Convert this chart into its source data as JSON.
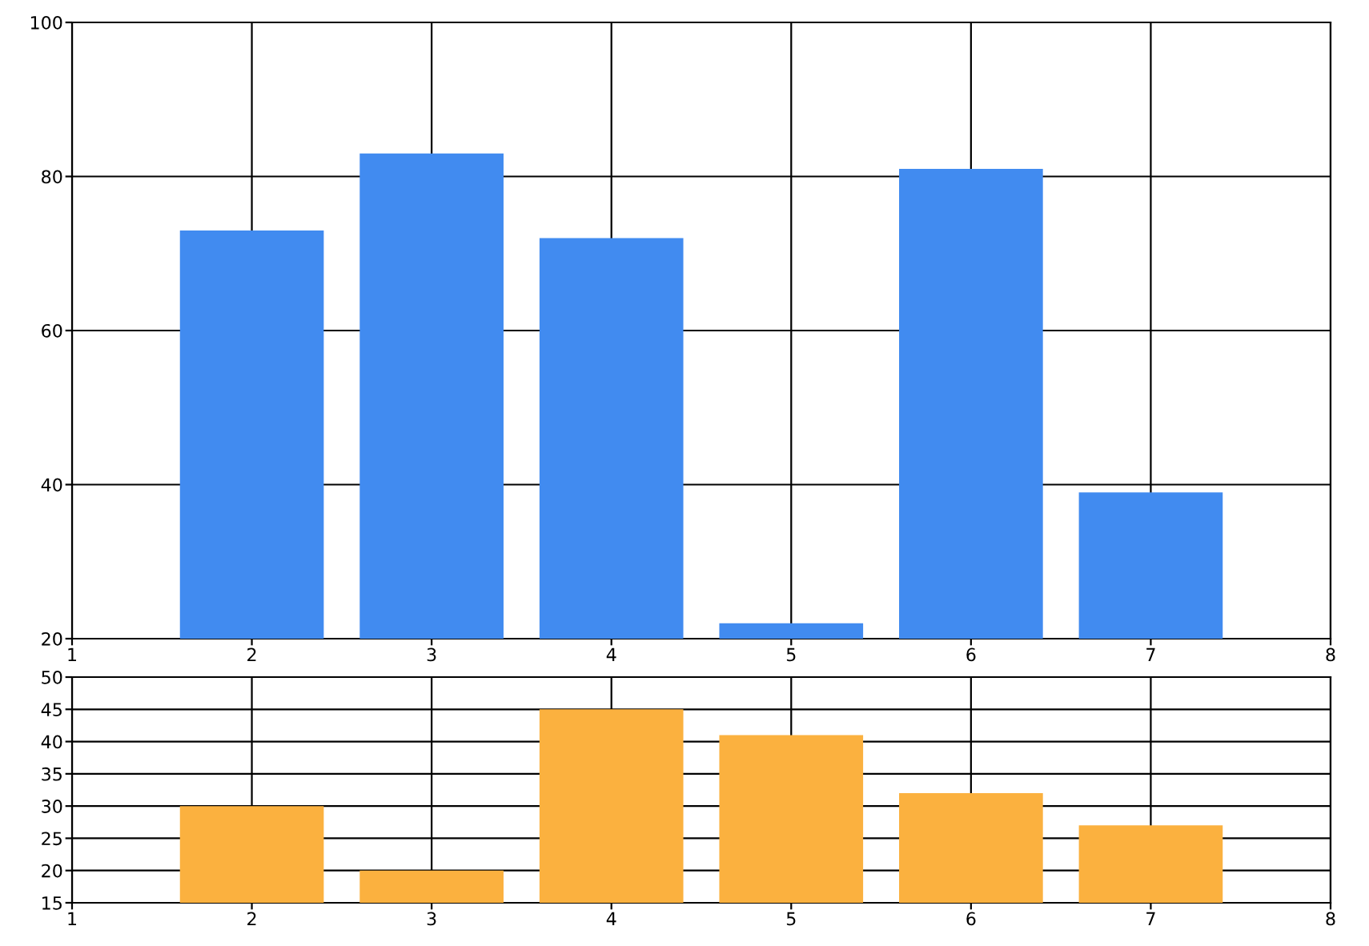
{
  "chart_data": [
    {
      "type": "bar",
      "x": [
        2,
        3,
        4,
        5,
        6,
        7
      ],
      "values": [
        73,
        83,
        72,
        22,
        81,
        39
      ],
      "color": "#418bf0",
      "xlim": [
        1,
        8
      ],
      "xticks": [
        1,
        2,
        3,
        4,
        5,
        6,
        7,
        8
      ],
      "ylim": [
        20,
        100
      ],
      "yticks": [
        20,
        40,
        60,
        80,
        100
      ],
      "grid": true
    },
    {
      "type": "bar",
      "x": [
        2,
        3,
        4,
        5,
        6,
        7
      ],
      "values": [
        30,
        20,
        45,
        41,
        32,
        27
      ],
      "color": "#fbb13f",
      "xlim": [
        1,
        8
      ],
      "xticks": [
        1,
        2,
        3,
        4,
        5,
        6,
        7,
        8
      ],
      "ylim": [
        15,
        50
      ],
      "yticks": [
        15,
        20,
        25,
        30,
        35,
        40,
        45,
        50
      ],
      "grid": true
    }
  ]
}
